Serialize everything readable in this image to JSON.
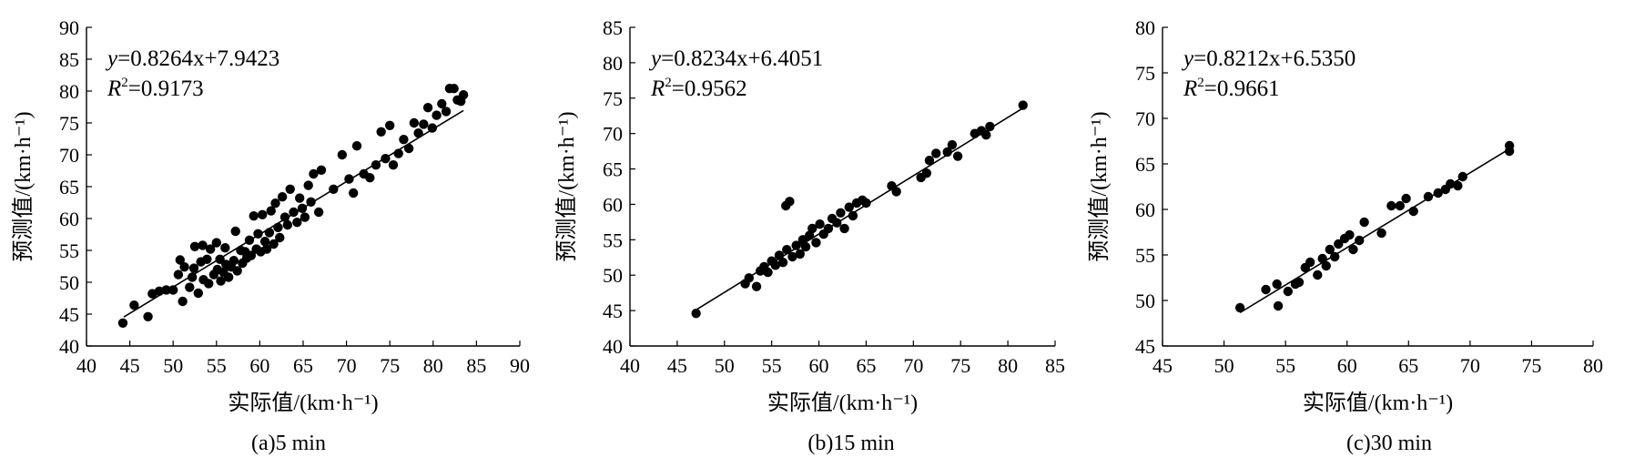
{
  "figure": {
    "axis_titles": {
      "x": "实际值/(km·h⁻¹)",
      "y": "预测值/(km·h⁻¹)"
    }
  },
  "chart_data": [
    {
      "type": "scatter",
      "panel": "a",
      "caption": "(a)5 min",
      "xlabel": "实际值/(km·h⁻¹)",
      "ylabel": "预测值/(km·h⁻¹)",
      "xlim": [
        40,
        90
      ],
      "ylim": [
        40,
        90
      ],
      "xticks": [
        40,
        45,
        50,
        55,
        60,
        65,
        70,
        75,
        80,
        85,
        90
      ],
      "yticks": [
        40,
        45,
        50,
        55,
        60,
        65,
        70,
        75,
        80,
        85,
        90
      ],
      "equation_prefix": "y=",
      "equation_body": "0.8264x+7.9423",
      "r2_label": "R2=",
      "r2_value": "0.9173",
      "fit": {
        "slope": 0.8264,
        "intercept": 7.9423,
        "x_range": [
          44.3,
          83.5
        ]
      },
      "points": [
        [
          44.2,
          43.6
        ],
        [
          45.5,
          46.4
        ],
        [
          47.1,
          44.6
        ],
        [
          47.6,
          48.2
        ],
        [
          48.4,
          48.6
        ],
        [
          49.2,
          48.8
        ],
        [
          50.0,
          48.8
        ],
        [
          50.6,
          51.2
        ],
        [
          50.8,
          53.5
        ],
        [
          51.1,
          47.0
        ],
        [
          51.3,
          52.4
        ],
        [
          51.9,
          49.2
        ],
        [
          52.2,
          50.8
        ],
        [
          52.4,
          52.2
        ],
        [
          52.5,
          55.6
        ],
        [
          52.9,
          48.3
        ],
        [
          53.2,
          53.2
        ],
        [
          53.4,
          55.8
        ],
        [
          53.5,
          50.4
        ],
        [
          53.9,
          53.6
        ],
        [
          54.1,
          49.8
        ],
        [
          54.3,
          55.2
        ],
        [
          54.7,
          51.2
        ],
        [
          55.0,
          56.2
        ],
        [
          55.1,
          52.0
        ],
        [
          55.4,
          53.6
        ],
        [
          55.5,
          50.2
        ],
        [
          55.8,
          51.6
        ],
        [
          56.0,
          55.4
        ],
        [
          56.1,
          52.8
        ],
        [
          56.4,
          50.8
        ],
        [
          56.7,
          52.4
        ],
        [
          57.0,
          53.4
        ],
        [
          57.2,
          58.0
        ],
        [
          57.4,
          51.8
        ],
        [
          57.8,
          55.0
        ],
        [
          58.0,
          53.0
        ],
        [
          58.3,
          54.8
        ],
        [
          58.5,
          53.8
        ],
        [
          58.8,
          56.6
        ],
        [
          59.0,
          54.2
        ],
        [
          59.3,
          60.4
        ],
        [
          59.6,
          55.2
        ],
        [
          59.8,
          57.6
        ],
        [
          60.1,
          54.8
        ],
        [
          60.3,
          60.6
        ],
        [
          60.6,
          56.4
        ],
        [
          60.8,
          55.2
        ],
        [
          61.1,
          57.8
        ],
        [
          61.3,
          61.2
        ],
        [
          61.6,
          56.0
        ],
        [
          61.8,
          62.4
        ],
        [
          62.1,
          58.6
        ],
        [
          62.3,
          57.0
        ],
        [
          62.6,
          63.4
        ],
        [
          62.9,
          60.2
        ],
        [
          63.2,
          59.0
        ],
        [
          63.5,
          64.6
        ],
        [
          63.9,
          61.0
        ],
        [
          64.3,
          59.4
        ],
        [
          64.6,
          63.2
        ],
        [
          64.9,
          61.6
        ],
        [
          65.2,
          60.2
        ],
        [
          65.6,
          65.2
        ],
        [
          65.9,
          62.6
        ],
        [
          66.2,
          67.0
        ],
        [
          66.8,
          61.0
        ],
        [
          67.1,
          67.6
        ],
        [
          68.5,
          64.6
        ],
        [
          69.5,
          70.0
        ],
        [
          70.3,
          66.2
        ],
        [
          70.8,
          64.0
        ],
        [
          71.2,
          71.4
        ],
        [
          72.0,
          67.0
        ],
        [
          72.7,
          66.4
        ],
        [
          73.4,
          68.4
        ],
        [
          74.0,
          73.6
        ],
        [
          74.5,
          69.4
        ],
        [
          75.0,
          74.6
        ],
        [
          75.4,
          68.4
        ],
        [
          76.0,
          70.2
        ],
        [
          76.6,
          72.4
        ],
        [
          77.2,
          71.0
        ],
        [
          77.8,
          75.0
        ],
        [
          78.3,
          73.4
        ],
        [
          78.9,
          74.8
        ],
        [
          79.4,
          77.4
        ],
        [
          79.9,
          74.2
        ],
        [
          80.4,
          76.2
        ],
        [
          81.0,
          78.0
        ],
        [
          81.5,
          76.8
        ],
        [
          81.9,
          80.4
        ],
        [
          82.4,
          80.4
        ],
        [
          82.8,
          78.6
        ],
        [
          83.2,
          78.4
        ],
        [
          83.5,
          79.4
        ]
      ]
    },
    {
      "type": "scatter",
      "panel": "b",
      "caption": "(b)15 min",
      "xlabel": "实际值/(km·h⁻¹)",
      "ylabel": "预测值/(km·h⁻¹)",
      "xlim": [
        40,
        85
      ],
      "ylim": [
        40,
        85
      ],
      "xticks": [
        40,
        45,
        50,
        55,
        60,
        65,
        70,
        75,
        80,
        85
      ],
      "yticks": [
        40,
        45,
        50,
        55,
        60,
        65,
        70,
        75,
        80,
        85
      ],
      "equation_prefix": "y=",
      "equation_body": "0.8234x+6.4051",
      "r2_label": "R2=",
      "r2_value": "0.9562",
      "fit": {
        "slope": 0.8234,
        "intercept": 6.4051,
        "x_range": [
          47.0,
          82.0
        ]
      },
      "points": [
        [
          47.0,
          44.6
        ],
        [
          52.2,
          48.8
        ],
        [
          52.6,
          49.6
        ],
        [
          53.4,
          48.4
        ],
        [
          53.8,
          50.6
        ],
        [
          54.2,
          51.2
        ],
        [
          54.6,
          50.4
        ],
        [
          55.0,
          52.0
        ],
        [
          55.4,
          51.4
        ],
        [
          55.8,
          52.8
        ],
        [
          56.2,
          51.8
        ],
        [
          56.6,
          53.6
        ],
        [
          56.5,
          59.8
        ],
        [
          56.9,
          60.4
        ],
        [
          57.2,
          52.6
        ],
        [
          57.6,
          54.2
        ],
        [
          58.0,
          53.0
        ],
        [
          58.3,
          55.0
        ],
        [
          58.6,
          54.0
        ],
        [
          59.0,
          55.6
        ],
        [
          59.3,
          56.6
        ],
        [
          59.7,
          54.6
        ],
        [
          60.1,
          57.2
        ],
        [
          60.5,
          55.8
        ],
        [
          61.0,
          56.6
        ],
        [
          61.4,
          58.0
        ],
        [
          61.9,
          57.4
        ],
        [
          62.3,
          58.8
        ],
        [
          62.7,
          56.6
        ],
        [
          63.2,
          59.6
        ],
        [
          63.6,
          58.4
        ],
        [
          64.0,
          60.2
        ],
        [
          64.6,
          60.6
        ],
        [
          65.0,
          60.2
        ],
        [
          67.7,
          62.6
        ],
        [
          68.2,
          61.8
        ],
        [
          70.8,
          63.8
        ],
        [
          71.4,
          64.4
        ],
        [
          71.7,
          66.2
        ],
        [
          72.4,
          67.2
        ],
        [
          73.6,
          67.4
        ],
        [
          74.1,
          68.4
        ],
        [
          74.7,
          66.8
        ],
        [
          76.5,
          70.0
        ],
        [
          77.2,
          70.4
        ],
        [
          77.7,
          69.8
        ],
        [
          78.1,
          71.0
        ],
        [
          81.6,
          74.0
        ]
      ]
    },
    {
      "type": "scatter",
      "panel": "c",
      "caption": "(c)30 min",
      "xlabel": "实际值/(km·h⁻¹)",
      "ylabel": "预测值/(km·h⁻¹)",
      "xlim": [
        45,
        80
      ],
      "ylim": [
        45,
        80
      ],
      "xticks": [
        45,
        50,
        55,
        60,
        65,
        70,
        75,
        80
      ],
      "yticks": [
        45,
        50,
        55,
        60,
        65,
        70,
        75,
        80
      ],
      "equation_prefix": "y=",
      "equation_body": "0.8212x+6.5350",
      "r2_label": "R2=",
      "r2_value": "0.9661",
      "fit": {
        "slope": 0.8212,
        "intercept": 6.535,
        "x_range": [
          51.3,
          73.3
        ]
      },
      "points": [
        [
          51.3,
          49.2
        ],
        [
          53.4,
          51.2
        ],
        [
          54.3,
          51.8
        ],
        [
          54.4,
          49.4
        ],
        [
          55.2,
          51.0
        ],
        [
          55.8,
          51.8
        ],
        [
          56.1,
          52.0
        ],
        [
          56.6,
          53.6
        ],
        [
          57.0,
          54.2
        ],
        [
          57.6,
          52.8
        ],
        [
          58.0,
          54.6
        ],
        [
          58.3,
          53.8
        ],
        [
          58.6,
          55.6
        ],
        [
          59.0,
          54.8
        ],
        [
          59.3,
          56.2
        ],
        [
          59.8,
          56.8
        ],
        [
          60.2,
          57.2
        ],
        [
          60.5,
          55.6
        ],
        [
          61.0,
          56.6
        ],
        [
          61.4,
          58.6
        ],
        [
          62.8,
          57.4
        ],
        [
          63.6,
          60.4
        ],
        [
          64.3,
          60.4
        ],
        [
          64.8,
          61.2
        ],
        [
          65.4,
          59.8
        ],
        [
          66.6,
          61.4
        ],
        [
          67.4,
          61.8
        ],
        [
          68.0,
          62.2
        ],
        [
          68.4,
          62.8
        ],
        [
          69.0,
          62.6
        ],
        [
          69.4,
          63.6
        ],
        [
          73.2,
          66.4
        ],
        [
          73.2,
          67.0
        ]
      ]
    }
  ]
}
